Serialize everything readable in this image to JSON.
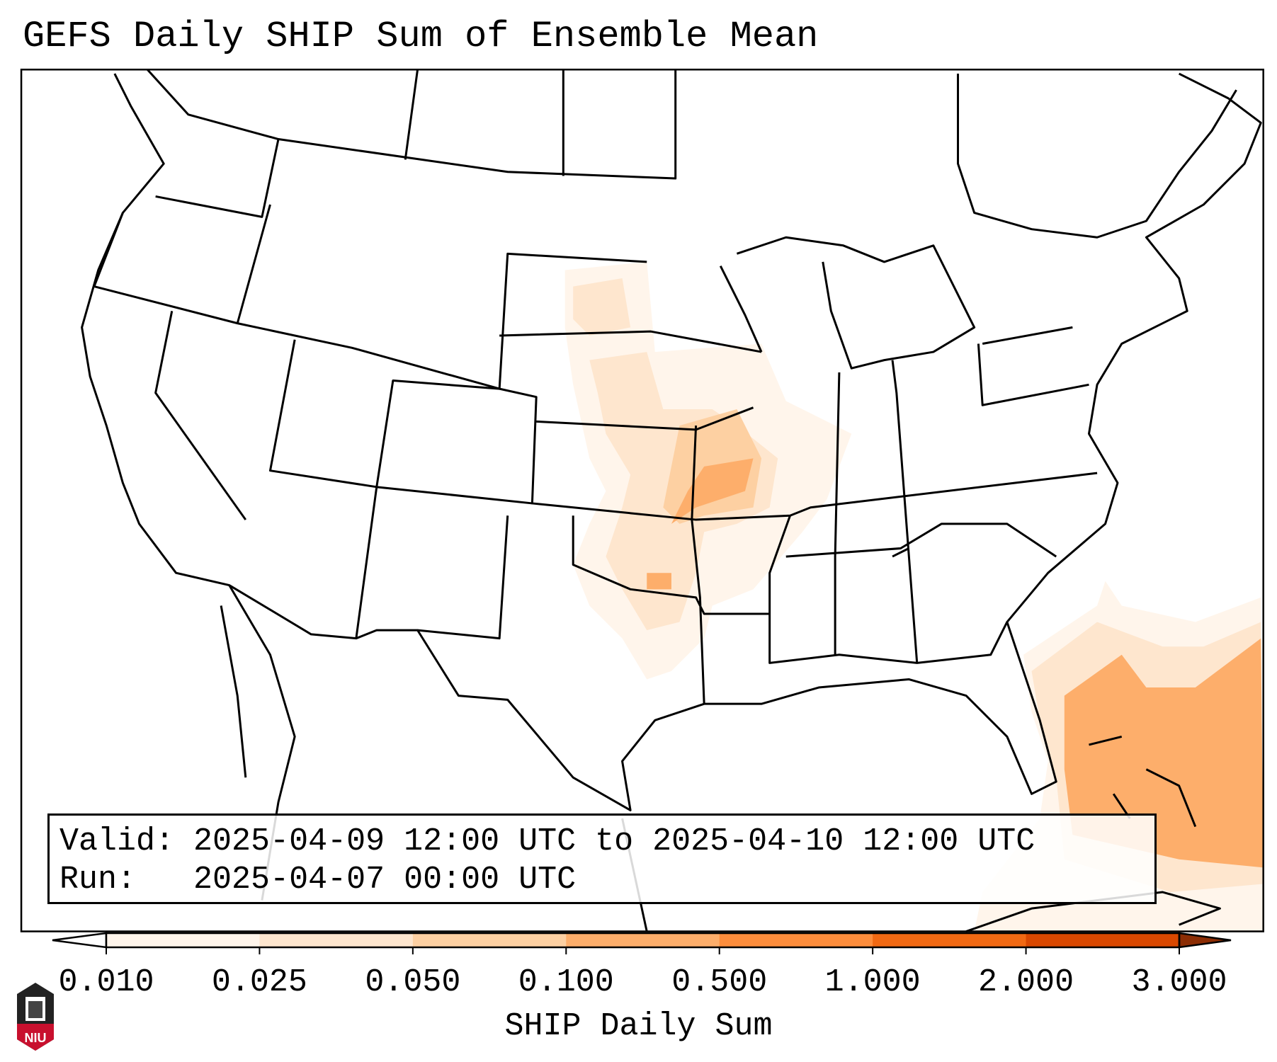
{
  "title": "GEFS Daily SHIP Sum of Ensemble Mean",
  "legend": {
    "valid_label": "Valid:",
    "valid_value": "2025-04-09 12:00 UTC to 2025-04-10 12:00 UTC",
    "run_label": "Run:",
    "run_value": "2025-04-07 00:00 UTC"
  },
  "colorbar": {
    "label": "SHIP Daily Sum",
    "ticks": [
      "0.010",
      "0.025",
      "0.050",
      "0.100",
      "0.500",
      "1.000",
      "2.000",
      "3.000"
    ],
    "colors": [
      "#fff5eb",
      "#fee6ce",
      "#fdd0a2",
      "#fdae6b",
      "#fd8d3c",
      "#f16913",
      "#d94801",
      "#8c2d04"
    ]
  },
  "logo": {
    "text": "NIU",
    "color": "#c8102e"
  }
}
